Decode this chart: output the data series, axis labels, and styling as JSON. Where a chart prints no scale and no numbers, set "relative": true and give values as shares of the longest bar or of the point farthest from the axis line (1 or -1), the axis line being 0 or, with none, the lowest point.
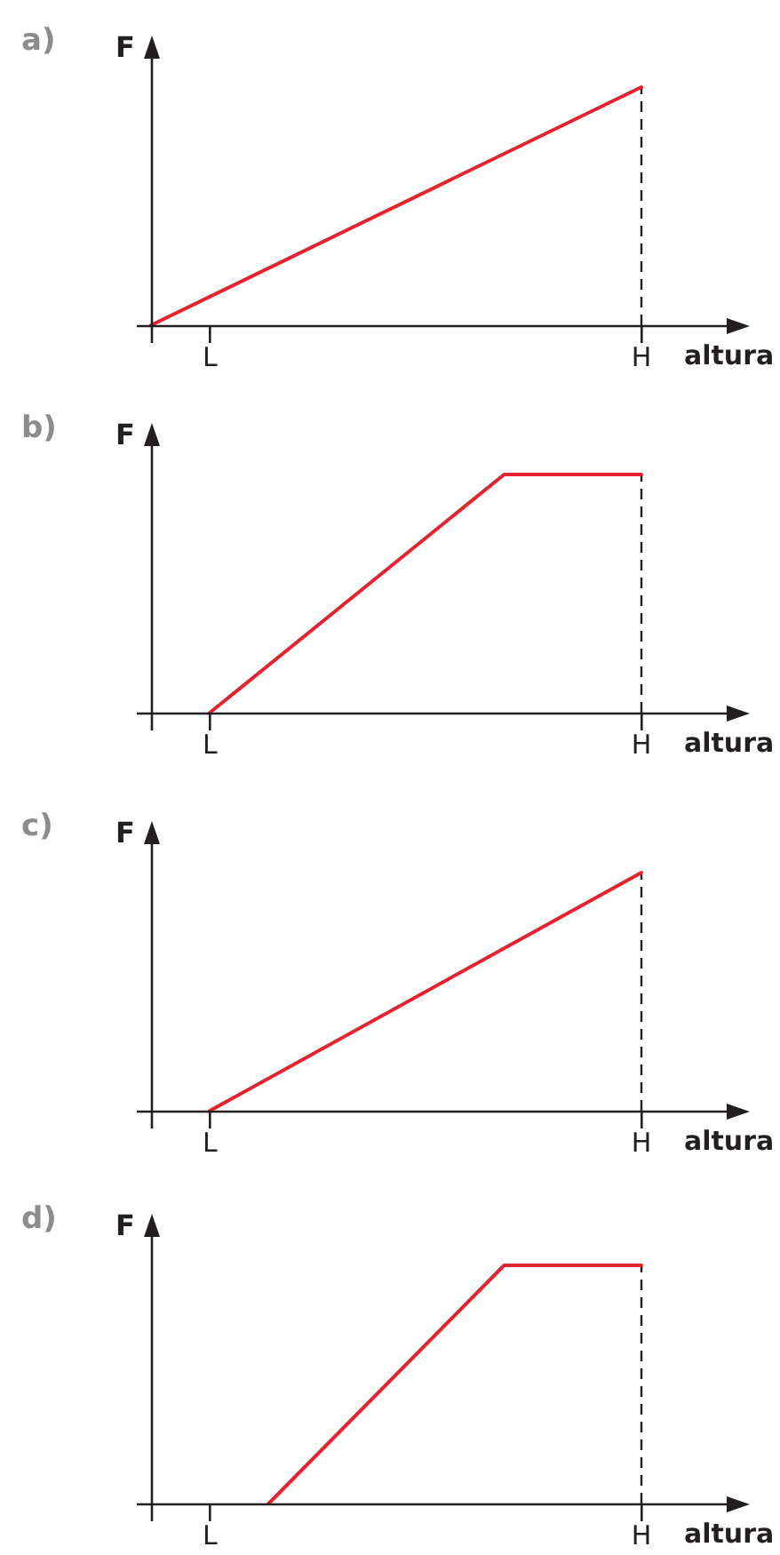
{
  "chart_data": [
    {
      "type": "line",
      "title": "a)",
      "xlabel": "altura",
      "ylabel": "F",
      "relative": true,
      "categories": [
        null,
        null,
        null,
        "L",
        null,
        null,
        null,
        null,
        null,
        null,
        null,
        null,
        null,
        null,
        null,
        null,
        null,
        null,
        null,
        null,
        null,
        null,
        null,
        null,
        null,
        "H"
      ],
      "series": [
        {
          "color": "#e52330",
          "values": [
            0,
            null,
            null,
            null,
            null,
            null,
            null,
            null,
            null,
            null,
            null,
            null,
            null,
            null,
            null,
            null,
            null,
            null,
            null,
            null,
            null,
            null,
            null,
            null,
            null,
            1
          ]
        }
      ],
      "ref_lines": [
        {
          "axis": "x",
          "value": "H",
          "label": null,
          "color": "#231f20",
          "line_style": "dashed"
        }
      ]
    },
    {
      "type": "line",
      "title": "b)",
      "xlabel": "altura",
      "ylabel": "F",
      "relative": true,
      "categories": [
        null,
        null,
        null,
        "L",
        null,
        null,
        null,
        null,
        null,
        null,
        null,
        null,
        null,
        null,
        null,
        null,
        null,
        null,
        null,
        null,
        null,
        null,
        null,
        null,
        null,
        "H"
      ],
      "series": [
        {
          "color": "#e52330",
          "values": [
            null,
            null,
            null,
            0,
            null,
            null,
            null,
            null,
            null,
            null,
            null,
            null,
            null,
            null,
            null,
            null,
            null,
            null,
            1,
            null,
            null,
            null,
            null,
            null,
            null,
            1
          ]
        }
      ],
      "ref_lines": [
        {
          "axis": "x",
          "value": "H",
          "label": null,
          "color": "#231f20",
          "line_style": "dashed"
        }
      ]
    },
    {
      "type": "line",
      "title": "c)",
      "xlabel": "altura",
      "ylabel": "F",
      "relative": true,
      "categories": [
        null,
        null,
        null,
        "L",
        null,
        null,
        null,
        null,
        null,
        null,
        null,
        null,
        null,
        null,
        null,
        null,
        null,
        null,
        null,
        null,
        null,
        null,
        null,
        null,
        null,
        "H"
      ],
      "series": [
        {
          "color": "#e52330",
          "values": [
            null,
            null,
            null,
            0,
            null,
            null,
            null,
            null,
            null,
            null,
            null,
            null,
            null,
            null,
            null,
            null,
            null,
            null,
            null,
            null,
            null,
            null,
            null,
            null,
            null,
            1
          ]
        }
      ],
      "ref_lines": [
        {
          "axis": "x",
          "value": "H",
          "label": null,
          "color": "#231f20",
          "line_style": "dashed"
        }
      ]
    },
    {
      "type": "line",
      "title": "d)",
      "xlabel": "altura",
      "ylabel": "F",
      "relative": true,
      "categories": [
        null,
        null,
        null,
        "L",
        null,
        null,
        null,
        null,
        null,
        null,
        null,
        null,
        null,
        null,
        null,
        null,
        null,
        null,
        null,
        null,
        null,
        null,
        null,
        null,
        null,
        "H"
      ],
      "series": [
        {
          "color": "#e52330",
          "values": [
            null,
            null,
            null,
            null,
            null,
            null,
            0,
            null,
            null,
            null,
            null,
            null,
            null,
            null,
            null,
            null,
            null,
            null,
            1,
            null,
            null,
            null,
            null,
            null,
            null,
            1
          ]
        }
      ],
      "ref_lines": [
        {
          "axis": "x",
          "value": "H",
          "label": null,
          "color": "#231f20",
          "line_style": "dashed"
        }
      ]
    }
  ]
}
